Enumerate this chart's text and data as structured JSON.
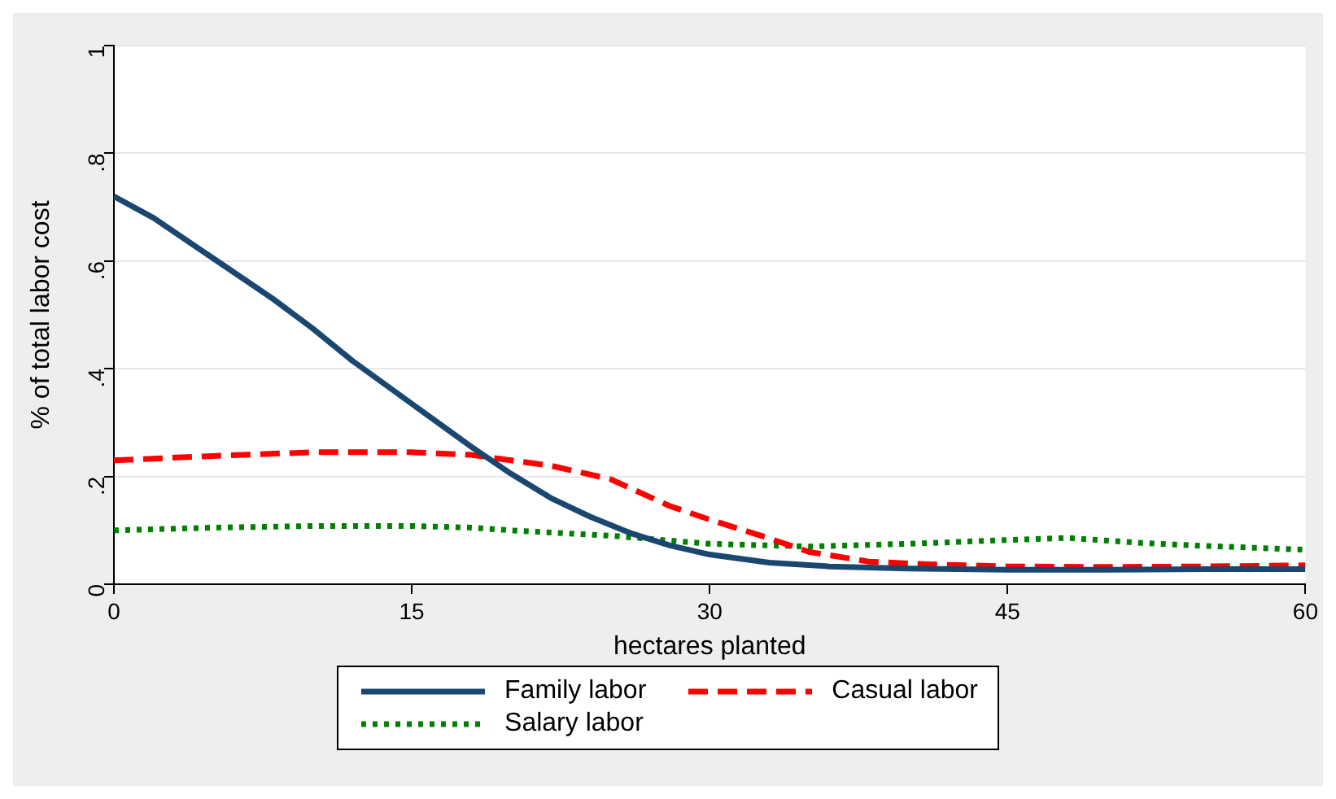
{
  "chart_data": {
    "type": "line",
    "xlabel": "hectares planted",
    "ylabel": "% of total labor cost",
    "xlim": [
      0,
      60
    ],
    "xticks": [
      0,
      15,
      30,
      45,
      60
    ],
    "ylim": [
      0,
      1
    ],
    "yticks": [
      0,
      {
        "value": 0.2,
        "label": ".2"
      },
      {
        "value": 0.4,
        "label": ".4"
      },
      {
        "value": 0.6,
        "label": ".6"
      },
      {
        "value": 0.8,
        "label": ".8"
      },
      1
    ],
    "grid": "y",
    "legend": "bottom",
    "marker": "none",
    "series": [
      {
        "name": "Family labor",
        "color": "#1a476f",
        "line_style": "solid",
        "x": [
          0,
          2,
          5,
          8,
          10,
          12,
          15,
          18,
          20,
          22,
          24,
          26,
          28,
          30,
          33,
          36,
          40,
          45,
          50,
          55,
          60
        ],
        "values": [
          0.72,
          0.68,
          0.605,
          0.53,
          0.475,
          0.415,
          0.335,
          0.255,
          0.205,
          0.16,
          0.125,
          0.095,
          0.072,
          0.055,
          0.04,
          0.033,
          0.029,
          0.027,
          0.027,
          0.028,
          0.028
        ]
      },
      {
        "name": "Casual labor",
        "color": "#ff0000",
        "line_style": "dashed",
        "x": [
          0,
          5,
          10,
          15,
          18,
          20,
          22,
          25,
          28,
          30,
          33,
          35,
          38,
          41,
          45,
          50,
          55,
          60
        ],
        "values": [
          0.23,
          0.238,
          0.245,
          0.245,
          0.24,
          0.23,
          0.22,
          0.195,
          0.145,
          0.12,
          0.085,
          0.06,
          0.042,
          0.037,
          0.033,
          0.032,
          0.033,
          0.035
        ]
      },
      {
        "name": "Salary labor",
        "color": "#008000",
        "line_style": "dotted",
        "x": [
          0,
          5,
          10,
          15,
          18,
          20,
          25,
          30,
          35,
          40,
          45,
          48,
          52,
          55,
          60
        ],
        "values": [
          0.1,
          0.105,
          0.108,
          0.108,
          0.105,
          0.1,
          0.09,
          0.075,
          0.07,
          0.075,
          0.082,
          0.086,
          0.076,
          0.071,
          0.064
        ]
      }
    ]
  }
}
